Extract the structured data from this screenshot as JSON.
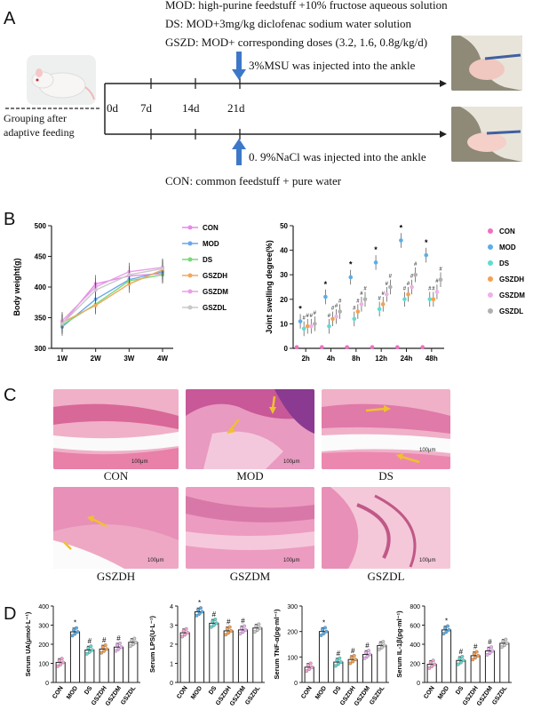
{
  "panelA": {
    "letter": "A",
    "mod_line": "MOD:      high-purine feedstuff +10% fructose aqueous solution",
    "ds_line": "DS:  MOD+3mg/kg diclofenac sodium water solution",
    "gszd_line": "GSZD:  MOD+ corresponding doses (3.2, 1.6, 0.8g/kg/d)",
    "msu_label": "3%MSU was injected into the ankle",
    "nacl_label": "0. 9%NaCl was injected into the ankle",
    "con_line": "CON:  common feedstuff + pure water",
    "grouping_line1": "Grouping after",
    "grouping_line2": "adaptive feeding",
    "timepoints": [
      "0d",
      "7d",
      "14d",
      "21d"
    ]
  },
  "panelB": {
    "letter": "B"
  },
  "panelC": {
    "letter": "C",
    "labels": [
      "CON",
      "MOD",
      "DS",
      "GSZDH",
      "GSZDM",
      "GSZDL"
    ],
    "scale": "100μm"
  },
  "panelD": {
    "letter": "D"
  },
  "chart_data": [
    {
      "type": "line",
      "ylabel": "Body weight(g)",
      "categories": [
        "1W",
        "2W",
        "3W",
        "4W"
      ],
      "ylim": [
        300,
        500
      ],
      "yticks": [
        300,
        350,
        400,
        450,
        500
      ],
      "legend": "right",
      "series": [
        {
          "name": "CON",
          "color": "#e68ae6",
          "values": [
            340,
            405,
            418,
            422
          ]
        },
        {
          "name": "MOD",
          "color": "#6aa8e8",
          "values": [
            335,
            380,
            412,
            425
          ]
        },
        {
          "name": "DS",
          "color": "#7ad87a",
          "values": [
            338,
            372,
            410,
            420
          ]
        },
        {
          "name": "GSZDH",
          "color": "#f0a860",
          "values": [
            342,
            370,
            405,
            428
          ]
        },
        {
          "name": "GSZDM",
          "color": "#e6a0e6",
          "values": [
            345,
            400,
            425,
            432
          ]
        },
        {
          "name": "GSZDL",
          "color": "#c8c8c8",
          "values": [
            340,
            395,
            420,
            430
          ]
        }
      ]
    },
    {
      "type": "scatter",
      "ylabel": "Joint swelling degree(%)",
      "categories": [
        "2h",
        "4h",
        "8h",
        "12h",
        "24h",
        "48h"
      ],
      "ylim": [
        0,
        50
      ],
      "yticks": [
        0,
        10,
        20,
        30,
        40,
        50
      ],
      "legend": "right",
      "annotations": [
        "*",
        "#"
      ],
      "series": [
        {
          "name": "CON",
          "color": "#f070c0",
          "values": [
            0.5,
            0.5,
            0.5,
            0.5,
            0.5,
            0.5
          ]
        },
        {
          "name": "MOD",
          "color": "#5aaee8",
          "values": [
            11,
            21,
            29,
            35,
            44,
            38
          ]
        },
        {
          "name": "DS",
          "color": "#60dcd0",
          "values": [
            8,
            9,
            12,
            16,
            20,
            20
          ]
        },
        {
          "name": "GSZDH",
          "color": "#f5a050",
          "values": [
            9,
            12,
            15,
            18,
            22,
            20
          ]
        },
        {
          "name": "GSZDM",
          "color": "#f0b0e8",
          "values": [
            9,
            13,
            18,
            22,
            25,
            23
          ]
        },
        {
          "name": "GSZDL",
          "color": "#b0b0b0",
          "values": [
            10,
            15,
            20,
            25,
            30,
            28
          ]
        }
      ]
    },
    {
      "type": "bar",
      "ylabel": "Serum UA(μmol·L⁻¹)",
      "categories": [
        "CON",
        "MOD",
        "DS",
        "GSZDH",
        "GSZDM",
        "GSZDL"
      ],
      "values": [
        105,
        265,
        170,
        175,
        185,
        210
      ],
      "ylim": [
        0,
        400
      ],
      "yticks": [
        0,
        100,
        200,
        300,
        400
      ],
      "colors": [
        "#f5a0d0",
        "#5aaee8",
        "#60d8d0",
        "#f5a050",
        "#e8b0f0",
        "#c8c8c8"
      ],
      "marks": [
        "",
        "*",
        "#",
        "#",
        "#",
        ""
      ]
    },
    {
      "type": "bar",
      "ylabel": "Serum LPS(U·L⁻¹)",
      "categories": [
        "CON",
        "MOD",
        "DS",
        "GSZDH",
        "GSZDM",
        "GSZDL"
      ],
      "values": [
        2.6,
        3.7,
        3.1,
        2.7,
        2.75,
        2.85
      ],
      "ylim": [
        0,
        4
      ],
      "yticks": [
        0,
        1,
        2,
        3,
        4
      ],
      "colors": [
        "#f5a0d0",
        "#5aaee8",
        "#60d8d0",
        "#f5a050",
        "#e8b0f0",
        "#c8c8c8"
      ],
      "marks": [
        "",
        "*",
        "#",
        "#",
        "#",
        ""
      ]
    },
    {
      "type": "bar",
      "ylabel": "Serum TNF-α(pg·ml⁻¹)",
      "categories": [
        "CON",
        "MOD",
        "DS",
        "GSZDH",
        "GSZDM",
        "GSZDL"
      ],
      "values": [
        60,
        200,
        80,
        90,
        110,
        145
      ],
      "ylim": [
        0,
        300
      ],
      "yticks": [
        0,
        100,
        200,
        300
      ],
      "colors": [
        "#f5a0d0",
        "#5aaee8",
        "#60d8d0",
        "#f5a050",
        "#e8b0f0",
        "#c8c8c8"
      ],
      "marks": [
        "",
        "*",
        "#",
        "#",
        "#",
        ""
      ]
    },
    {
      "type": "bar",
      "ylabel": "Serum IL-1β(pg·ml⁻¹)",
      "categories": [
        "CON",
        "MOD",
        "DS",
        "GSZDH",
        "GSZDM",
        "GSZDL"
      ],
      "values": [
        190,
        550,
        230,
        280,
        330,
        410
      ],
      "ylim": [
        0,
        800
      ],
      "yticks": [
        0,
        200,
        400,
        600,
        800
      ],
      "colors": [
        "#f5a0d0",
        "#5aaee8",
        "#60d8d0",
        "#f5a050",
        "#e8b0f0",
        "#c8c8c8"
      ],
      "marks": [
        "",
        "*",
        "#",
        "#",
        "#",
        ""
      ]
    }
  ]
}
